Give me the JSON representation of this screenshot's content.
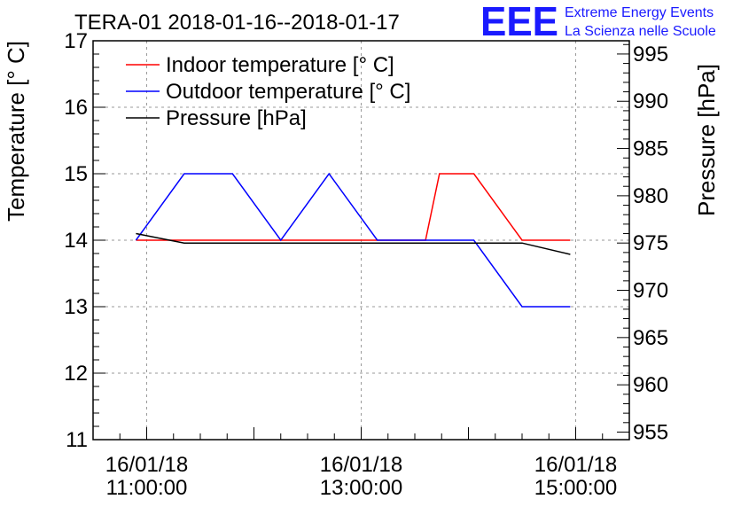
{
  "chart_data": {
    "type": "line",
    "title": "TERA-01 2018-01-16--2018-01-17",
    "logo": {
      "text": "EEE",
      "line1": "Extreme Energy Events",
      "line2": "La Scienza nelle Scuole"
    },
    "y_left": {
      "label": "Temperature [° C]",
      "lim": [
        11,
        17
      ],
      "ticks": [
        "11",
        "12",
        "13",
        "14",
        "15",
        "16",
        "17"
      ]
    },
    "y_right": {
      "label": "Pressure [hPa]",
      "lim": [
        954.2,
        996.4
      ],
      "ticks": [
        "955",
        "960",
        "965",
        "970",
        "975",
        "980",
        "985",
        "990",
        "995"
      ]
    },
    "x_axis": {
      "lim_hours": [
        10.5,
        15.5
      ],
      "ticks": [
        {
          "hour": 11,
          "date": "16/01/18",
          "time": "11:00:00"
        },
        {
          "hour": 13,
          "date": "16/01/18",
          "time": "13:00:00"
        },
        {
          "hour": 15,
          "date": "16/01/18",
          "time": "15:00:00"
        }
      ]
    },
    "series": [
      {
        "name": "Indoor temperature [° C]",
        "color": "#ff0000",
        "axis": "left",
        "x": [
          10.9,
          11.35,
          11.8,
          12.25,
          12.7,
          13.15,
          13.6,
          13.73,
          14.05,
          14.5,
          14.95
        ],
        "y": [
          14,
          14,
          14,
          14,
          14,
          14,
          14,
          15,
          15,
          14,
          14
        ]
      },
      {
        "name": "Outdoor temperature [° C]",
        "color": "#0000ff",
        "axis": "left",
        "x": [
          10.9,
          11.35,
          11.8,
          12.25,
          12.7,
          13.15,
          13.6,
          14.05,
          14.5,
          14.95
        ],
        "y": [
          14,
          15,
          15,
          14,
          15,
          14,
          14,
          14,
          13,
          13
        ]
      },
      {
        "name": "Pressure [hPa]",
        "color": "#000000",
        "axis": "right",
        "x": [
          10.9,
          11.35,
          11.8,
          12.25,
          12.7,
          13.15,
          13.6,
          14.05,
          14.5,
          14.95
        ],
        "y": [
          976.0,
          975.0,
          975.0,
          975.0,
          975.0,
          975.0,
          975.0,
          975.0,
          975.0,
          973.8
        ]
      }
    ],
    "legend_position": "top-left",
    "grid": true
  }
}
